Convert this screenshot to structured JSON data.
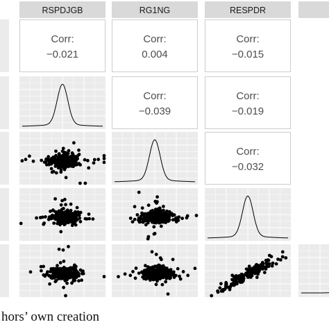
{
  "caption": "hors’ own creation",
  "chart_data": {
    "type": "scatter",
    "title": "",
    "variables": [
      "RSPDJGB",
      "RG1NG",
      "RESPDR",
      ""
    ],
    "correlations": [
      {
        "row": 0,
        "col": 0,
        "label": "Corr:",
        "value": "−0.021"
      },
      {
        "row": 0,
        "col": 1,
        "label": "Corr:",
        "value": "0.004"
      },
      {
        "row": 0,
        "col": 2,
        "label": "Corr:",
        "value": "−0.015"
      },
      {
        "row": 1,
        "col": 1,
        "label": "Corr:",
        "value": "−0.039"
      },
      {
        "row": 1,
        "col": 2,
        "label": "Corr:",
        "value": "−0.019"
      },
      {
        "row": 2,
        "col": 2,
        "label": "Corr:",
        "value": "−0.032"
      }
    ],
    "densities": [
      {
        "row": 1,
        "col": 0,
        "shape": "peaked"
      },
      {
        "row": 2,
        "col": 1,
        "shape": "peaked"
      },
      {
        "row": 3,
        "col": 2,
        "shape": "peaked"
      },
      {
        "row": 4,
        "col": 3,
        "shape": "flat"
      }
    ],
    "scatter_panels": [
      {
        "row": 2,
        "col": 0,
        "x": "RSPDJGB",
        "y": "RG1NG",
        "pattern": "cloud"
      },
      {
        "row": 3,
        "col": 0,
        "x": "RSPDJGB",
        "y": "RESPDR",
        "pattern": "cloud"
      },
      {
        "row": 3,
        "col": 1,
        "x": "RG1NG",
        "y": "RESPDR",
        "pattern": "cloud"
      },
      {
        "row": 4,
        "col": 0,
        "x": "RSPDJGB",
        "y": "",
        "pattern": "cloud"
      },
      {
        "row": 4,
        "col": 1,
        "x": "RG1NG",
        "y": "",
        "pattern": "cloud"
      },
      {
        "row": 4,
        "col": 2,
        "x": "RESPDR",
        "y": "",
        "pattern": "diagonal"
      }
    ],
    "grid": true,
    "panel_background": "#ebebeb",
    "strip_background": "#d9d9d9",
    "point_color": "#000000"
  }
}
